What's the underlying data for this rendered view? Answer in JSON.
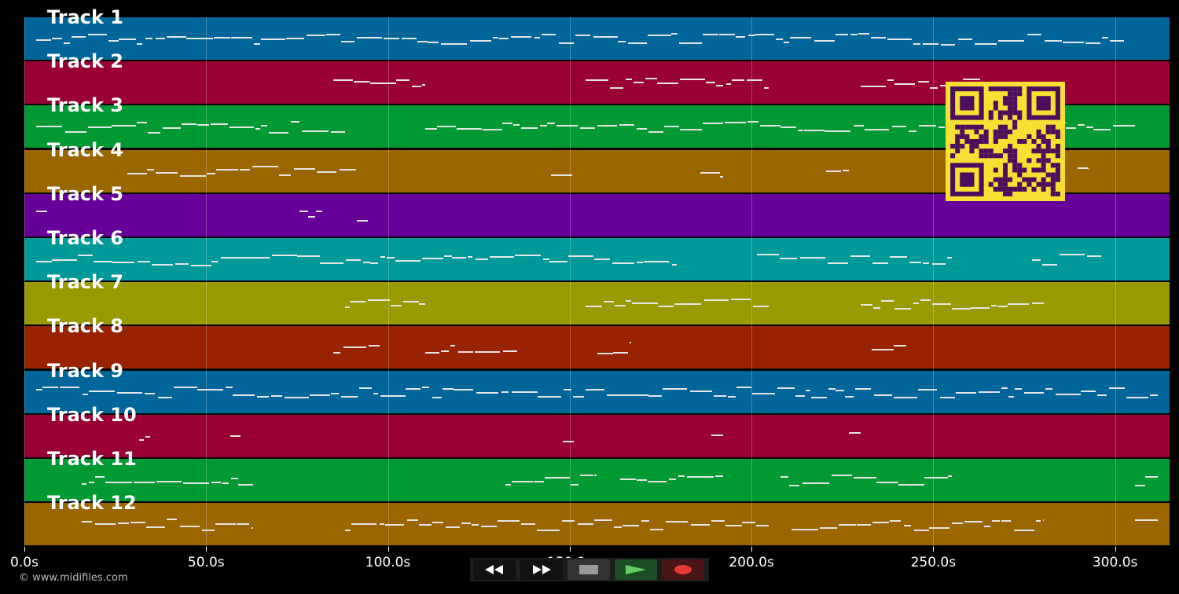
{
  "tracks": [
    {
      "label": "Track 1",
      "color": "#006699"
    },
    {
      "label": "Track 2",
      "color": "#990033"
    },
    {
      "label": "Track 3",
      "color": "#009933"
    },
    {
      "label": "Track 4",
      "color": "#996600"
    },
    {
      "label": "Track 5",
      "color": "#660099"
    },
    {
      "label": "Track 6",
      "color": "#009999"
    },
    {
      "label": "Track 7",
      "color": "#999900"
    },
    {
      "label": "Track 8",
      "color": "#992200"
    },
    {
      "label": "Track 9",
      "color": "#006699"
    },
    {
      "label": "Track 10",
      "color": "#990033"
    },
    {
      "label": "Track 11",
      "color": "#009933"
    },
    {
      "label": "Track 12",
      "color": "#996600"
    }
  ],
  "timeline": {
    "ticks": [
      "0.0s",
      "50.0s",
      "100.0s",
      "150.0s",
      "200.0s",
      "250.0s",
      "300.0s"
    ],
    "tick_values": [
      0,
      50,
      100,
      150,
      200,
      250,
      300
    ],
    "max_seconds": 315
  },
  "footer": {
    "copyright": "© www.midifiles.com"
  },
  "transport": {
    "rewind_icon": "rewind-icon",
    "forward_icon": "fast-forward-icon",
    "stop_icon": "stop-icon",
    "play_icon": "play-icon",
    "record_icon": "record-icon",
    "play_color": "#2e7d32",
    "record_color": "#e53935"
  },
  "qr": {
    "color": "#4a0f5c",
    "background": "#f7e034"
  }
}
